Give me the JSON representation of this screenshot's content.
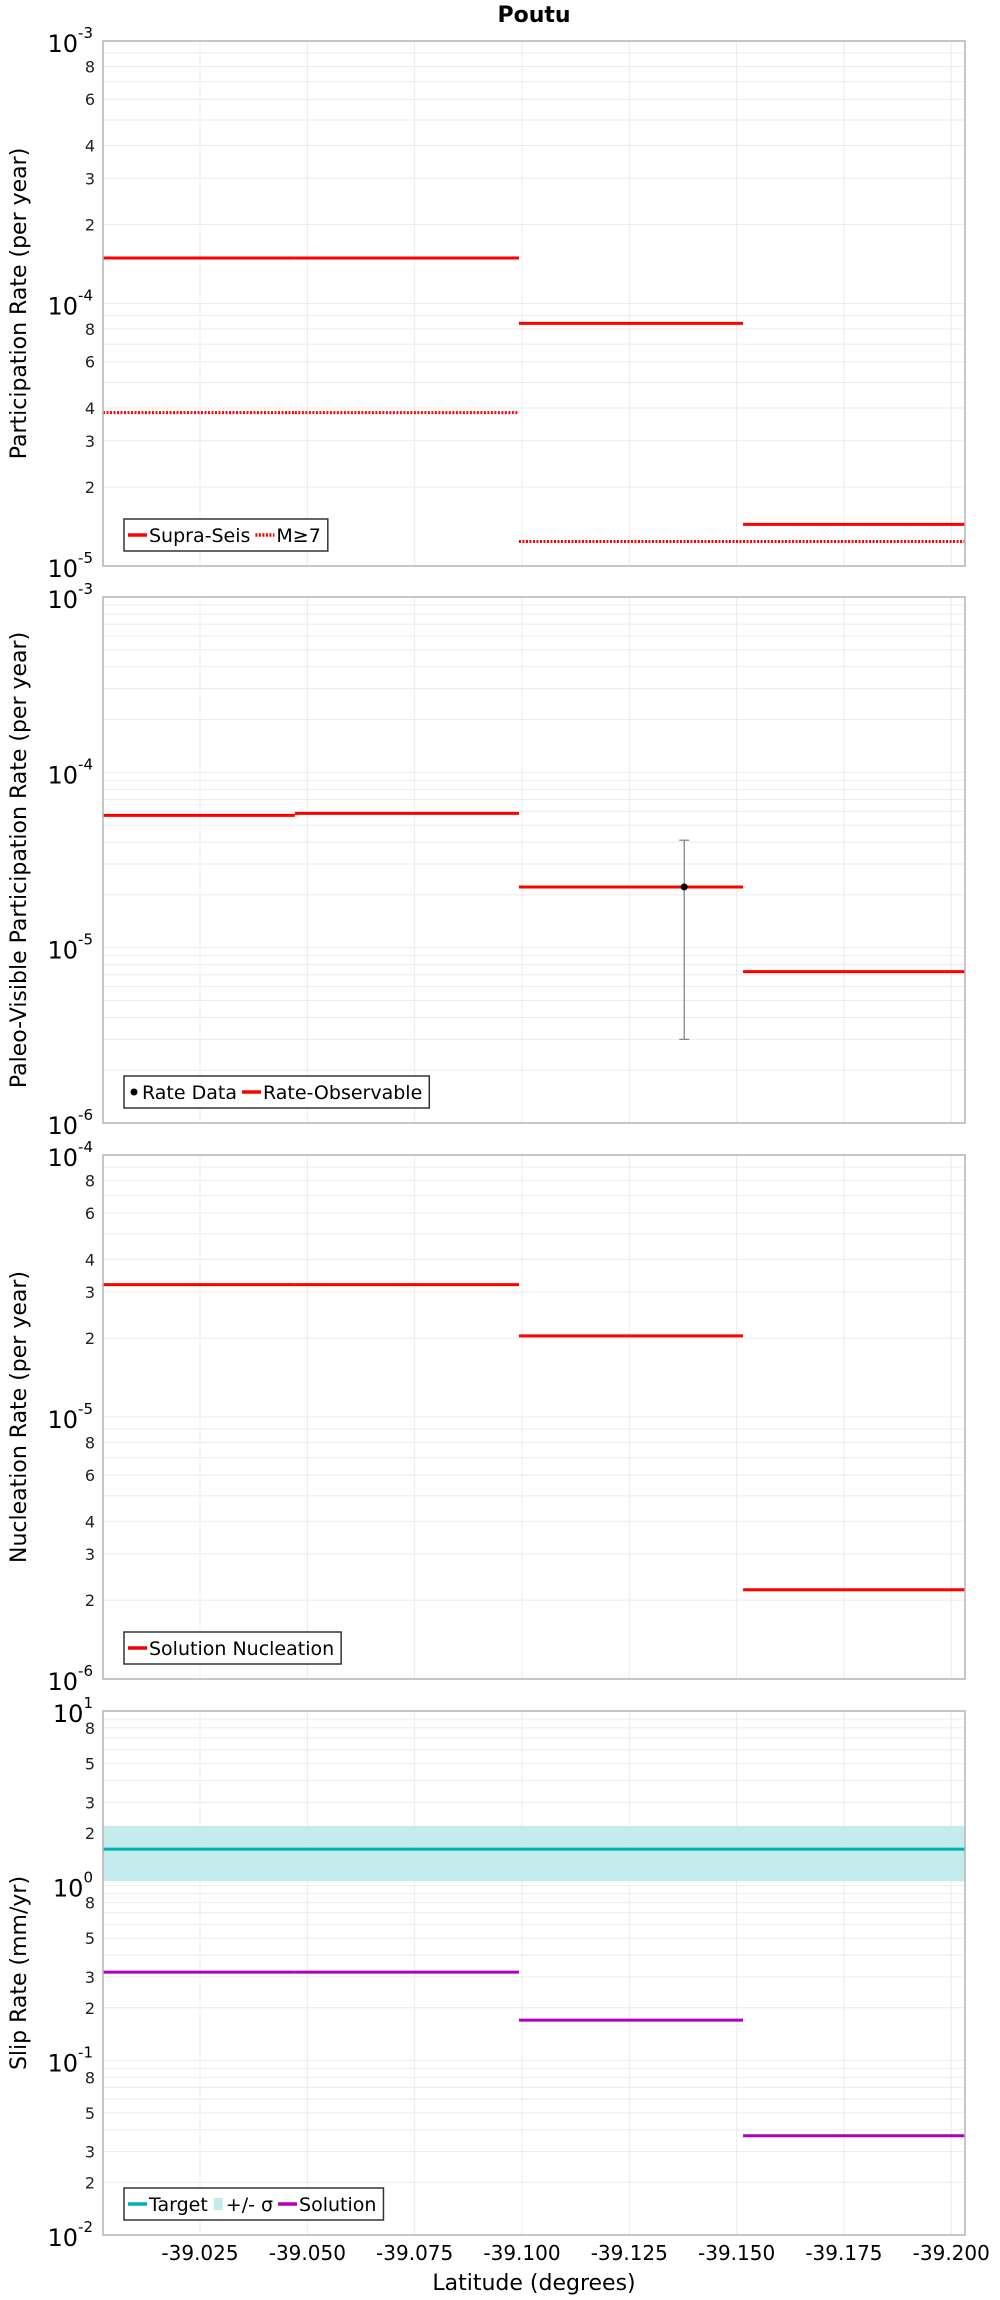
{
  "chart_data": {
    "title": "Poutu",
    "xlabel": "Latitude (degrees)",
    "xlim": [
      -39.0024,
      -39.2032
    ],
    "x_ticks": [
      -39.025,
      -39.05,
      -39.075,
      -39.1,
      -39.125,
      -39.15,
      -39.175,
      -39.2
    ],
    "x_tick_labels": [
      "-39.025",
      "-39.050",
      "-39.075",
      "-39.100",
      "-39.125",
      "-39.150",
      "-39.175",
      "-39.200"
    ],
    "grid": true,
    "panels": [
      {
        "type": "line",
        "ylabel": "Participation Rate (per year)",
        "yscale": "log",
        "ylim": [
          1e-05,
          0.001
        ],
        "decade_exponents": [
          -3,
          -4,
          -5
        ],
        "minor_labels": [
          "2",
          "3",
          "4",
          "6",
          "8"
        ],
        "legend": {
          "placement": "bottom-left",
          "entries": [
            {
              "label": "Supra-Seis",
              "style": "solid",
              "color": "#ff0000"
            },
            {
              "label": "M≥7",
              "style": "dotted",
              "color": "#ff0000"
            }
          ]
        },
        "series": [
          {
            "name": "Supra-Seis",
            "style": "solid",
            "color": "#ff0000",
            "segments": [
              {
                "x0": -39.0024,
                "x1": -39.0471,
                "y": 0.000149
              },
              {
                "x0": -39.0471,
                "x1": -39.0993,
                "y": 0.000149
              },
              {
                "x0": -39.0993,
                "x1": -39.1515,
                "y": 8.4e-05
              },
              {
                "x0": -39.1515,
                "x1": -39.2032,
                "y": 1.44e-05
              }
            ]
          },
          {
            "name": "M≥7",
            "style": "dotted",
            "color": "#ff0000",
            "segments": [
              {
                "x0": -39.0024,
                "x1": -39.0471,
                "y": 3.84e-05
              },
              {
                "x0": -39.0471,
                "x1": -39.0993,
                "y": 3.84e-05
              },
              {
                "x0": -39.0993,
                "x1": -39.1515,
                "y": 1.24e-05
              },
              {
                "x0": -39.1515,
                "x1": -39.2032,
                "y": 1.24e-05
              }
            ]
          }
        ]
      },
      {
        "type": "line",
        "ylabel": "Paleo-Visible Participation Rate (per year)",
        "yscale": "log",
        "ylim": [
          1e-06,
          0.001
        ],
        "decade_exponents": [
          -3,
          -4,
          -5,
          -6
        ],
        "minor_labels": [],
        "legend": {
          "placement": "bottom-left",
          "entries": [
            {
              "label": "Rate Data",
              "style": "point",
              "color": "#000000"
            },
            {
              "label": "Rate-Observable",
              "style": "solid",
              "color": "#ff0000"
            }
          ]
        },
        "series": [
          {
            "name": "Rate-Observable",
            "style": "solid",
            "color": "#ff0000",
            "segments": [
              {
                "x0": -39.0024,
                "x1": -39.0471,
                "y": 5.68e-05
              },
              {
                "x0": -39.0471,
                "x1": -39.0993,
                "y": 5.83e-05
              },
              {
                "x0": -39.0993,
                "x1": -39.1515,
                "y": 2.22e-05
              },
              {
                "x0": -39.1515,
                "x1": -39.2032,
                "y": 7.3e-06
              }
            ]
          }
        ],
        "points": [
          {
            "name": "Rate Data",
            "x": -39.1378,
            "y": 2.22e-05,
            "y_low": 3e-06,
            "y_high": 4.1e-05,
            "color": "#000000",
            "errorbar_color": "#888888"
          }
        ]
      },
      {
        "type": "line",
        "ylabel": "Nucleation Rate (per year)",
        "yscale": "log",
        "ylim": [
          1e-06,
          0.0001
        ],
        "decade_exponents": [
          -4,
          -5,
          -6
        ],
        "minor_labels": [
          "2",
          "3",
          "4",
          "6",
          "8"
        ],
        "legend": {
          "placement": "bottom-left",
          "entries": [
            {
              "label": "Solution Nucleation",
              "style": "solid",
              "color": "#ff0000"
            }
          ]
        },
        "series": [
          {
            "name": "Solution Nucleation",
            "style": "solid",
            "color": "#ff0000",
            "segments": [
              {
                "x0": -39.0024,
                "x1": -39.0471,
                "y": 3.2e-05
              },
              {
                "x0": -39.0471,
                "x1": -39.0993,
                "y": 3.2e-05
              },
              {
                "x0": -39.0993,
                "x1": -39.1515,
                "y": 2.04e-05
              },
              {
                "x0": -39.1515,
                "x1": -39.2032,
                "y": 2.19e-06
              }
            ]
          }
        ]
      },
      {
        "type": "line",
        "ylabel": "Slip Rate (mm/yr)",
        "yscale": "log",
        "ylim": [
          0.01,
          10.0
        ],
        "decade_exponents": [
          1,
          0,
          -1,
          -2
        ],
        "minor_labels": [
          "2",
          "3",
          "5",
          "8"
        ],
        "legend": {
          "placement": "bottom-left",
          "entries": [
            {
              "label": "Target",
              "style": "solid",
              "color": "#00b0b0"
            },
            {
              "label": "+/- σ",
              "style": "band",
              "color": "#c2ebeb"
            },
            {
              "label": "Solution",
              "style": "solid",
              "color": "#b000b8"
            }
          ]
        },
        "bands": [
          {
            "name": "+/- σ",
            "color": "#c2ebeb",
            "x0": -39.0024,
            "x1": -39.2032,
            "y_low": 1.06,
            "y_high": 2.2
          }
        ],
        "series": [
          {
            "name": "Target",
            "style": "solid",
            "color": "#00b0b0",
            "segments": [
              {
                "x0": -39.0024,
                "x1": -39.0471,
                "y": 1.62
              },
              {
                "x0": -39.0471,
                "x1": -39.0993,
                "y": 1.62
              },
              {
                "x0": -39.0993,
                "x1": -39.1515,
                "y": 1.62
              },
              {
                "x0": -39.1515,
                "x1": -39.2032,
                "y": 1.62
              }
            ]
          },
          {
            "name": "Solution",
            "style": "solid",
            "color": "#b000b8",
            "segments": [
              {
                "x0": -39.0024,
                "x1": -39.0471,
                "y": 0.32
              },
              {
                "x0": -39.0471,
                "x1": -39.0993,
                "y": 0.32
              },
              {
                "x0": -39.0993,
                "x1": -39.1515,
                "y": 0.17
              },
              {
                "x0": -39.1515,
                "x1": -39.2032,
                "y": 0.037
              }
            ]
          }
        ]
      }
    ]
  }
}
